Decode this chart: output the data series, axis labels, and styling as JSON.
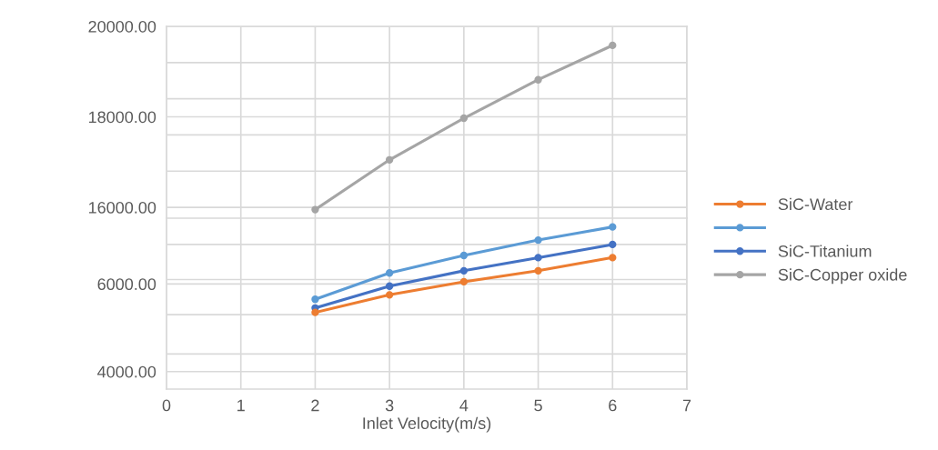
{
  "chart_data": [
    {
      "type": "line",
      "x": [
        2,
        3,
        4,
        5,
        6
      ],
      "xlim": [
        0,
        7
      ],
      "xticks": [
        0,
        1,
        2,
        3,
        4,
        5,
        6,
        7
      ],
      "ylim": [
        15760,
        20000
      ],
      "yticks": [
        {
          "value": 16000,
          "label": "16000.00"
        },
        {
          "value": 16800,
          "label": null
        },
        {
          "value": 17600,
          "label": null
        },
        {
          "value": 18000,
          "label": "18000.00"
        },
        {
          "value": 18400,
          "label": null
        },
        {
          "value": 19200,
          "label": null
        },
        {
          "value": 20000,
          "label": "20000.00"
        }
      ],
      "tick_labels": "y",
      "grid": true,
      "marker": "circle",
      "legend": "right",
      "series": [
        {
          "name": "SiC-Copper oxide",
          "color": "#a5a5a5",
          "values": [
            15950,
            17050,
            17970,
            18820,
            19580
          ]
        }
      ]
    },
    {
      "type": "line",
      "x": [
        2,
        3,
        4,
        5,
        6
      ],
      "xlim": [
        0,
        7
      ],
      "xticks": [
        0,
        1,
        2,
        3,
        4,
        5,
        6,
        7
      ],
      "ylim": [
        3600,
        7500
      ],
      "yticks": [
        {
          "value": 4000,
          "label": "4000.00"
        },
        {
          "value": 4400,
          "label": null
        },
        {
          "value": 5300,
          "label": null
        },
        {
          "value": 6000,
          "label": "6000.00"
        },
        {
          "value": 6100,
          "label": null
        },
        {
          "value": 6900,
          "label": null
        }
      ],
      "xlabel": "Inlet Velocity(m/s)",
      "grid": true,
      "marker": "circle",
      "legend": "right",
      "series": [
        {
          "name": "SiC-Water",
          "color": "#ed7d31",
          "values": [
            5350,
            5750,
            6050,
            6300,
            6600
          ]
        },
        {
          "color": "#5b9bd5",
          "values": [
            5650,
            6250,
            6650,
            7000,
            7300
          ]
        },
        {
          "name": "SiC-Titanium",
          "color": "#4472c4",
          "values": [
            5450,
            5950,
            6300,
            6600,
            6900
          ]
        }
      ]
    }
  ]
}
